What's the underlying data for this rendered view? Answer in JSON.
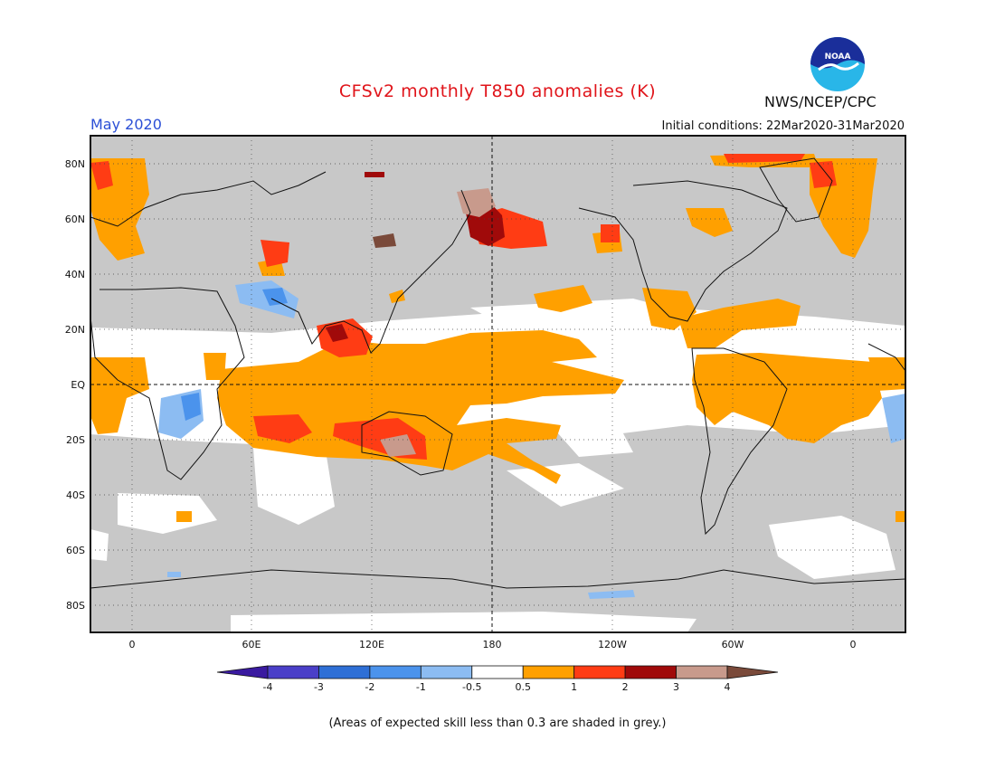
{
  "header": {
    "title": "CFSv2 monthly T850 anomalies (K)",
    "period": "May 2020",
    "initial_conditions": "Initial conditions: 22Mar2020-31Mar2020",
    "agency": "NWS/NCEP/CPC",
    "logo_text": "NOAA"
  },
  "map": {
    "lat_ticks": [
      "80N",
      "60N",
      "40N",
      "20N",
      "EQ",
      "20S",
      "40S",
      "60S",
      "80S"
    ],
    "lon_ticks": [
      "0",
      "60E",
      "120E",
      "180",
      "120W",
      "60W",
      "0"
    ],
    "skill_mask_color": "#c8c8c8"
  },
  "colorbar": {
    "labels": [
      "-4",
      "-3",
      "-2",
      "-1",
      "-0.5",
      "0.5",
      "1",
      "2",
      "3",
      "4"
    ],
    "colors": [
      "#3a1aa0",
      "#4a3fc8",
      "#2e6fd6",
      "#4b93ec",
      "#8cbcf2",
      "#ffffff",
      "#ffa000",
      "#ff3c14",
      "#a00a0a",
      "#c89a8c",
      "#7a4a3a"
    ]
  },
  "footer": {
    "note": "(Areas of expected skill less than 0.3 are shaded in grey.)"
  }
}
